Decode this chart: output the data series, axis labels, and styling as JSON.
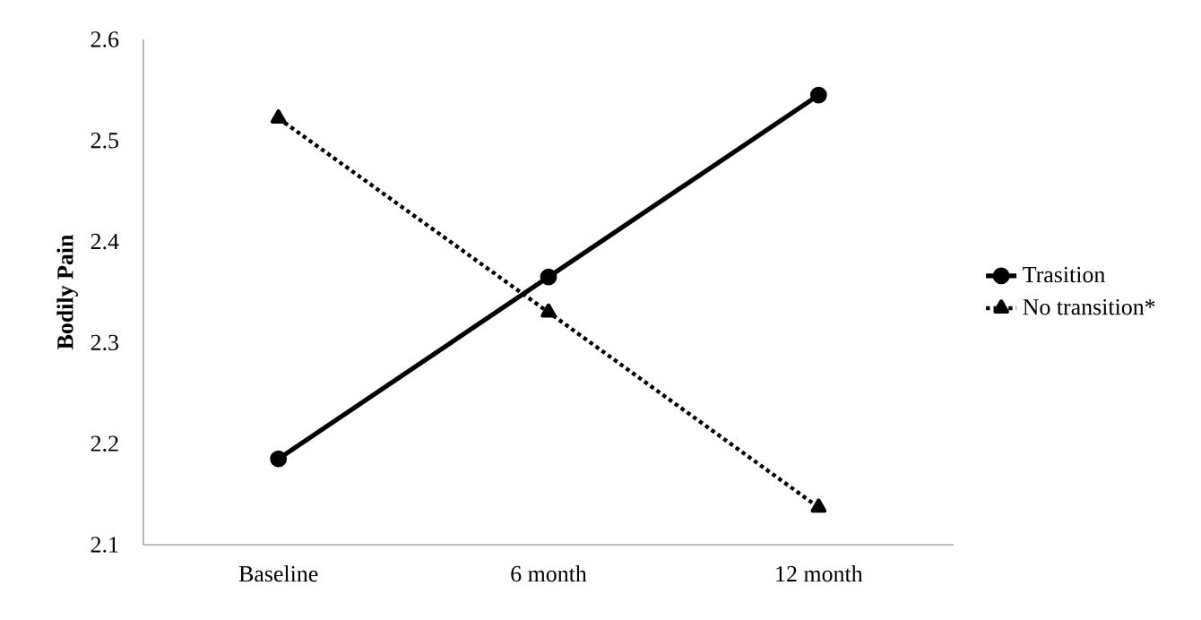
{
  "chart_data": {
    "type": "line",
    "ylabel": "Bodily Pain",
    "categories": [
      "Baseline",
      "6 month",
      "12 month"
    ],
    "ylim": [
      2.1,
      2.6
    ],
    "yticks": [
      2.1,
      2.2,
      2.3,
      2.4,
      2.5,
      2.6
    ],
    "legend": "right",
    "series": [
      {
        "name": "Trasition",
        "color": "#000000",
        "values": [
          2.185,
          2.365,
          2.545
        ],
        "marker": "circle",
        "line_style": "solid"
      },
      {
        "name": "No transition*",
        "color": "#000000",
        "values": [
          2.522,
          2.33,
          2.137
        ],
        "marker": "triangle",
        "line_style": "dotted"
      }
    ]
  }
}
